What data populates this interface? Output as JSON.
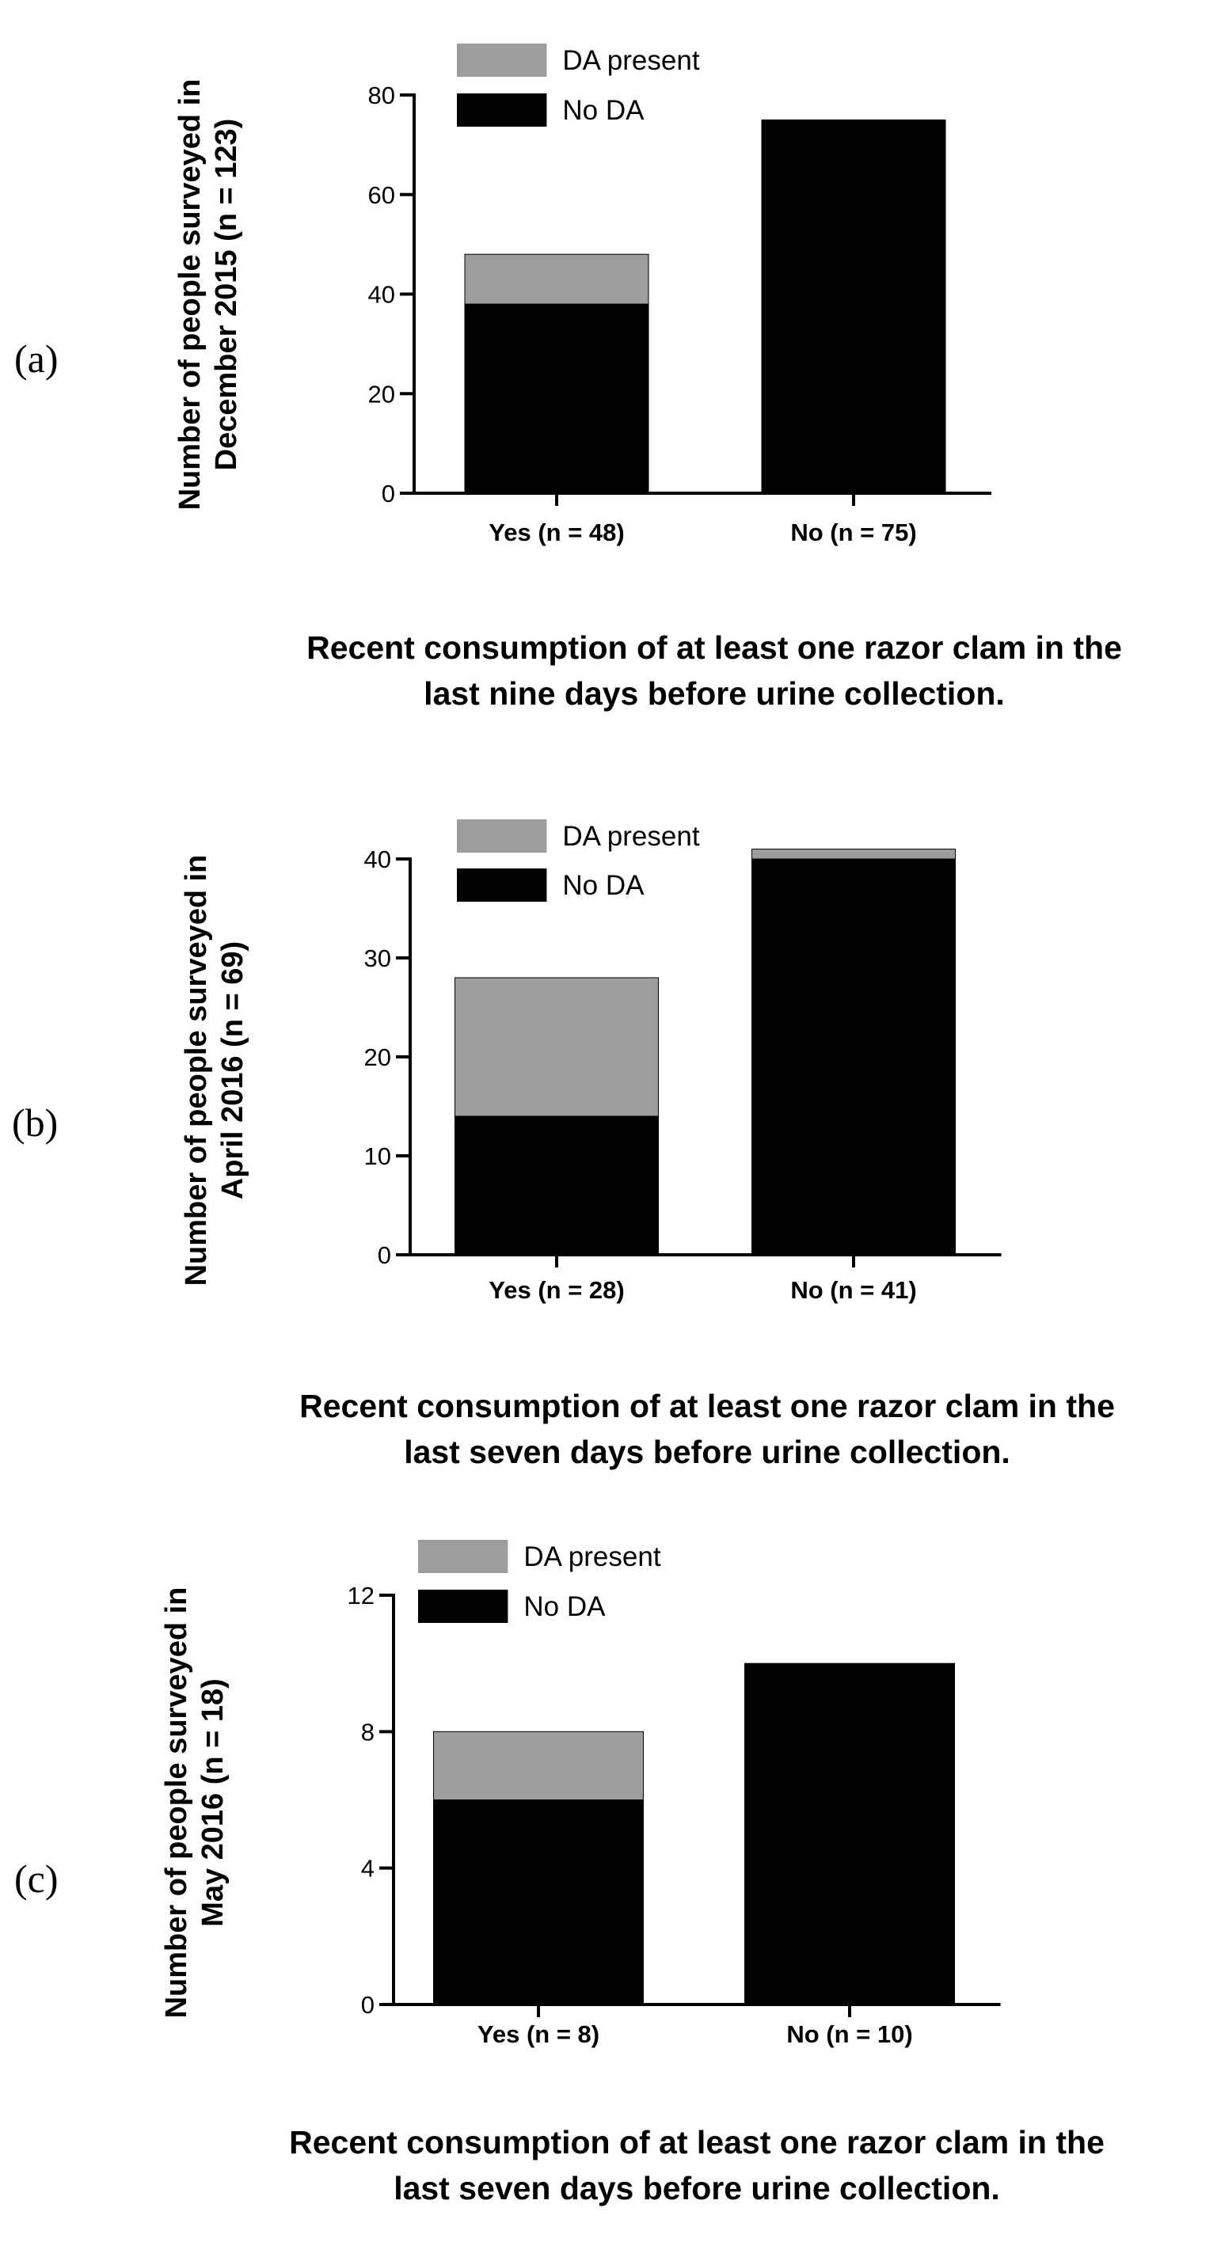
{
  "colors": {
    "da_present": "#9d9d9f",
    "no_da": "#000000"
  },
  "chart_data": [
    {
      "panel": "(a)",
      "type": "bar",
      "stacked": true,
      "categories": [
        "Yes (n = 48)",
        "No (n = 75)"
      ],
      "series": [
        {
          "name": "No DA",
          "values": [
            38,
            75
          ]
        },
        {
          "name": "DA present",
          "values": [
            10,
            0
          ]
        }
      ],
      "ylabel": [
        "Number of people  surveyed in",
        "December 2015 (n = 123)"
      ],
      "xlabel": [
        "Recent consumption of at least one razor clam in the",
        "last nine days before urine collection."
      ],
      "ylim": [
        0,
        80
      ],
      "yticks": [
        0,
        20,
        40,
        60,
        80
      ],
      "legend_position": "top-left",
      "grid": false
    },
    {
      "panel": "(b)",
      "type": "bar",
      "stacked": true,
      "categories": [
        "Yes (n = 28)",
        "No (n = 41)"
      ],
      "series": [
        {
          "name": "No DA",
          "values": [
            14,
            40
          ]
        },
        {
          "name": "DA present",
          "values": [
            14,
            1
          ]
        }
      ],
      "ylabel": [
        "Number of people  surveyed in",
        "April 2016 (n = 69)"
      ],
      "xlabel": [
        "Recent consumption of at least one razor clam in the",
        "last seven days before urine collection."
      ],
      "ylim": [
        0,
        40
      ],
      "yticks": [
        0,
        10,
        20,
        30,
        40
      ],
      "legend_position": "top-left",
      "grid": false
    },
    {
      "panel": "(c)",
      "type": "bar",
      "stacked": true,
      "categories": [
        "Yes (n = 8)",
        "No (n = 10)"
      ],
      "series": [
        {
          "name": "No DA",
          "values": [
            6,
            10
          ]
        },
        {
          "name": "DA present",
          "values": [
            2,
            0
          ]
        }
      ],
      "ylabel": [
        "Number of people  surveyed in",
        "May 2016 (n = 18)"
      ],
      "xlabel": [
        "Recent consumption of at least one razor clam in the",
        "last seven days before urine collection."
      ],
      "ylim": [
        0,
        12
      ],
      "yticks": [
        0,
        4,
        8,
        12
      ],
      "legend_position": "top-left",
      "grid": false
    }
  ]
}
